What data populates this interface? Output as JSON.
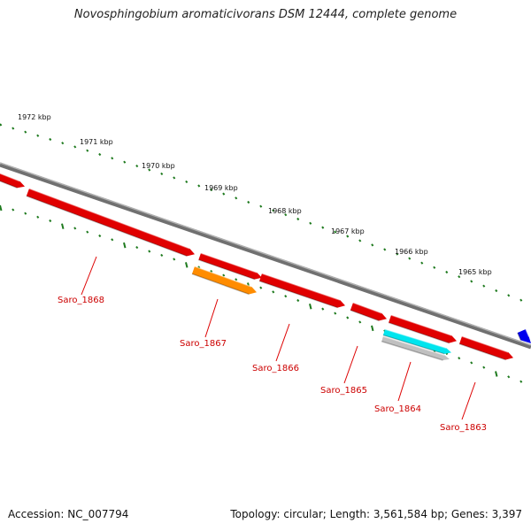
{
  "title": "Novosphingobium aromaticivorans DSM 12444, complete genome",
  "footer": {
    "accession": "Accession: NC_007794",
    "summary": "Topology: circular; Length: 3,561,584 bp; Genes: 3,397"
  },
  "ticks": [
    {
      "label": "1972 kbp",
      "kbp": 1972
    },
    {
      "label": "1971 kbp",
      "kbp": 1971
    },
    {
      "label": "1970 kbp",
      "kbp": 1970
    },
    {
      "label": "1969 kbp",
      "kbp": 1969
    },
    {
      "label": "1968 kbp",
      "kbp": 1968
    },
    {
      "label": "1967 kbp",
      "kbp": 1967
    },
    {
      "label": "1966 kbp",
      "kbp": 1966
    },
    {
      "label": "1965 kbp",
      "kbp": 1965
    }
  ],
  "genes": [
    {
      "name": "Saro_1868",
      "color": "#e00000"
    },
    {
      "name": "Saro_1867",
      "color": "#ff8c00"
    },
    {
      "name": "Saro_1866",
      "color": "#e00000"
    },
    {
      "name": "Saro_1865",
      "color": "#e00000"
    },
    {
      "name": "Saro_1864",
      "color": "#00e5ee"
    },
    {
      "name": "Saro_1863",
      "color": "#e00000"
    }
  ],
  "colors": {
    "backbone": "#808080",
    "tick": "#1e7a1e",
    "feature_red": "#e00000",
    "feature_orange": "#ff8c00",
    "feature_cyan": "#00e5ee",
    "feature_gray": "#c0c0c0",
    "feature_blue": "#0000ee"
  }
}
